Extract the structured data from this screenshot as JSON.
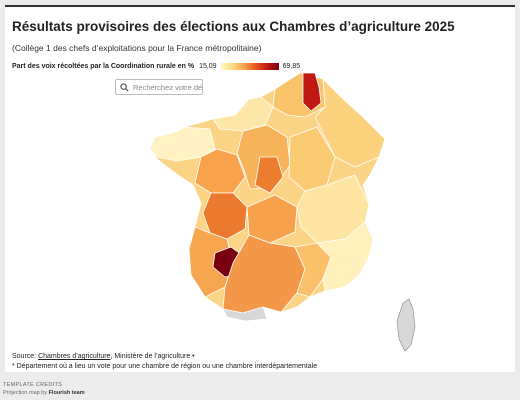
{
  "title": "Résultats provisoires des élections aux Chambres d’agriculture 2025",
  "subtitle": "(Collège 1 des chefs d’exploitations pour la France métropolitaine)",
  "legend": {
    "title": "Part des voix récoltées par la Coordination rurale en %",
    "min": "15,09",
    "max": "69,85",
    "colors": [
      "#fff6c8",
      "#fddb80",
      "#f8a24b",
      "#e8561f",
      "#c01812",
      "#7a0010"
    ]
  },
  "search": {
    "placeholder": "Recherchez votre dépa"
  },
  "source": {
    "label": "Source:",
    "link": "Chambres d’agriculture",
    "rest": ", Ministère de l’agriculture •"
  },
  "note": "* Département où a lieu un vote pour une chambre de région ou une chambre interdépartementale",
  "footer": {
    "credits_label": "Template credits",
    "credits_text": "Projection map by",
    "credits_team": "Flourish team"
  },
  "map_data": {
    "highest_region_color": "#7a0010",
    "no_data_color": "#d8d8d8"
  }
}
